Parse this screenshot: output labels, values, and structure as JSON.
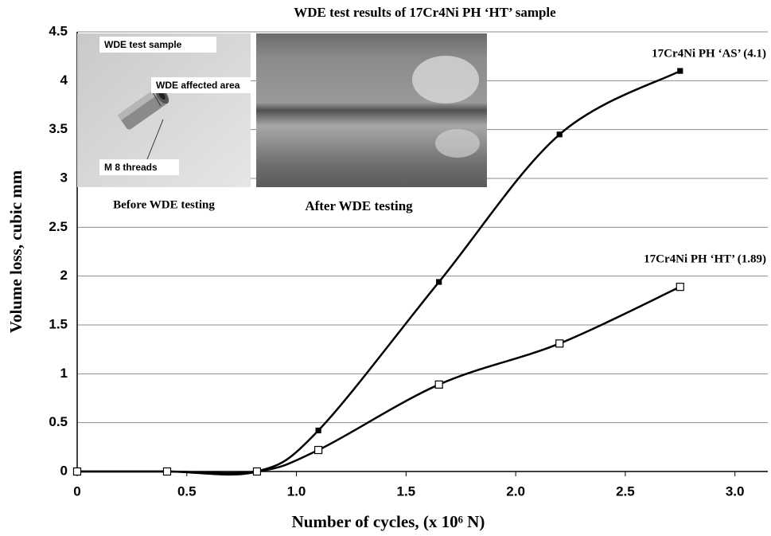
{
  "chart_data": {
    "type": "line",
    "title": "WDE test results of 17Cr4Ni PH ‘HT’  sample",
    "x_label": "Number of cycles, (x 10⁶ N)",
    "y_label": "Volume loss, cubic mm",
    "smooth": true,
    "grid": true,
    "xlim": [
      0,
      3.15
    ],
    "xticks": [
      0,
      0.5,
      {
        "value": 1,
        "label": "1.0"
      },
      1.5,
      {
        "value": 2,
        "label": "2.0"
      },
      2.5,
      {
        "value": 3,
        "label": "3.0"
      }
    ],
    "ylim": [
      0,
      4.5
    ],
    "yticks": [
      0,
      0.5,
      1,
      1.5,
      2,
      2.5,
      3,
      3.5,
      4,
      4.5
    ],
    "series": [
      {
        "name": "17Cr4Ni PH ‘AS’ (4.1)",
        "color": "#000000",
        "marker": "filled-square",
        "x": [
          0,
          0.41,
          0.82,
          1.1,
          1.65,
          2.2,
          2.75
        ],
        "values": [
          0,
          0,
          0,
          0.42,
          1.94,
          3.45,
          4.1
        ]
      },
      {
        "name": "17Cr4Ni PH ‘HT’ (1.89)",
        "color": "#000000",
        "marker": "open-square",
        "x": [
          0,
          0.41,
          0.82,
          1.1,
          1.65,
          2.2,
          2.75
        ],
        "values": [
          0,
          0,
          0,
          0.22,
          0.89,
          1.31,
          1.89
        ]
      }
    ],
    "annotations": [
      "WDE test sample",
      "WDE affected area",
      "M 8 threads",
      "Before  WDE testing",
      "After WDE testing"
    ]
  }
}
